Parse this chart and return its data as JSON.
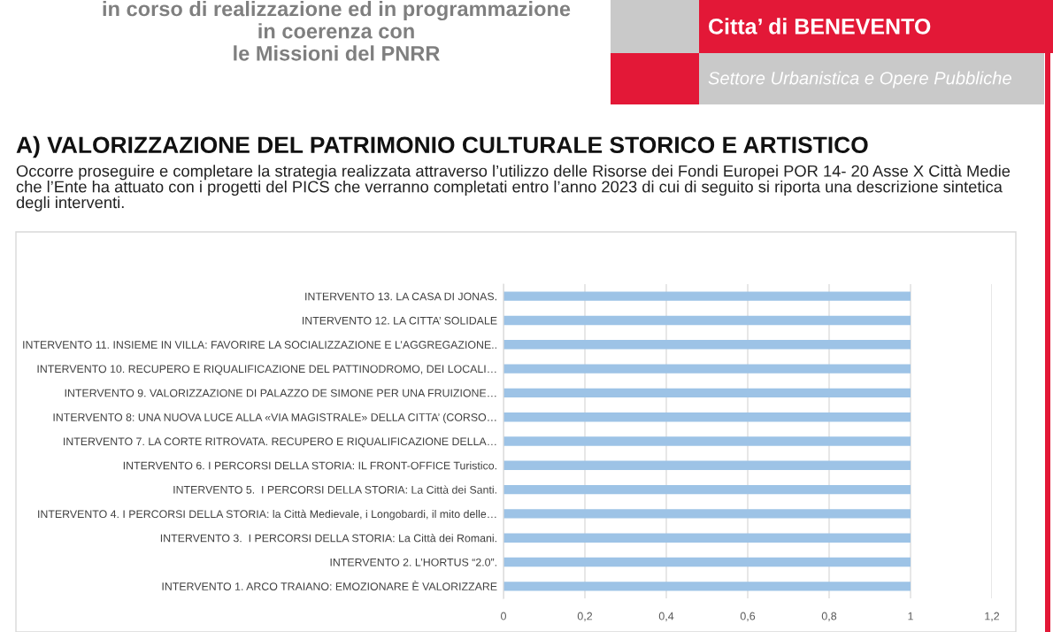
{
  "chart_data": {
    "type": "bar",
    "orientation": "horizontal",
    "title": "A) VALORIZZAZIONE DEL PATRIMONIO CULTURALE STORICO E ARTISTICO",
    "subtitle": "Occorre proseguire e completare la strategia realizzata attraverso l’utilizzo delle Risorse dei Fondi Europei POR 14- 20 Asse X Città Medie che l’Ente ha attuato con i progetti del PICS che verranno completati entro l’anno 2023 di cui di seguito si riporta una descrizione sintetica degli interventi.",
    "annotations": [
      "in corso di realizzazione ed in programmazione\nin coerenza con\nle Missioni del PNRR",
      "Citta’ di BENEVENTO",
      "Settore Urbanistica e Opere Pubbliche"
    ],
    "categories": [
      "INTERVENTO 13. LA CASA DI JONAS.",
      "INTERVENTO 12. LA CITTA’ SOLIDALE",
      "INTERVENTO 11. INSIEME IN VILLA: FAVORIRE LA SOCIALIZZAZIONE E L’AGGREGAZIONE..",
      "INTERVENTO 10. RECUPERO E RIQUALIFICAZIONE DEL PATTINODROMO, DEI LOCALI…",
      "INTERVENTO 9. VALORIZZAZIONE DI PALAZZO DE SIMONE PER UNA FRUIZIONE…",
      "INTERVENTO 8: UNA NUOVA LUCE ALLA «VIA MAGISTRALE» DELLA CITTA’ (CORSO…",
      "INTERVENTO 7. LA CORTE RITROVATA. RECUPERO E RIQUALIFICAZIONE DELLA…",
      "INTERVENTO 6. I PERCORSI DELLA STORIA: IL FRONT-OFFICE Turistico.",
      "INTERVENTO 5.  I PERCORSI DELLA STORIA: La Città dei Santi.",
      "INTERVENTO 4. I PERCORSI DELLA STORIA: la Città Medievale, i Longobardi, il mito delle…",
      "INTERVENTO 3.  I PERCORSI DELLA STORIA: La Città dei Romani.",
      "INTERVENTO 2. L’HORTUS “2.0”.",
      "INTERVENTO 1. ARCO TRAIANO: EMOZIONARE È VALORIZZARE"
    ],
    "values": [
      1,
      1,
      1,
      1,
      1,
      1,
      1,
      1,
      1,
      1,
      1,
      1,
      1
    ],
    "color": "#9dc3e6",
    "xlim": [
      0,
      1.2
    ],
    "xticks": [
      0,
      {
        "value": 0.2,
        "label": "0,2"
      },
      {
        "value": 0.4,
        "label": "0,4"
      },
      {
        "value": 0.6,
        "label": "0,6"
      },
      {
        "value": 0.8,
        "label": "0,8"
      },
      1,
      {
        "value": 1.2,
        "label": "1,2"
      }
    ],
    "grid": "x"
  }
}
